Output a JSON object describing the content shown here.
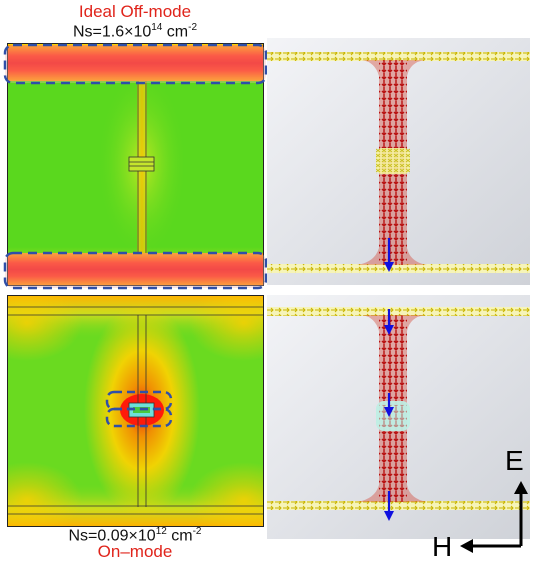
{
  "top": {
    "mode_label": "Ideal Off-mode",
    "ns_prefix": "Ns=1.6×10",
    "ns_exp": "14",
    "ns_unit": " cm",
    "ns_unit_exp": "-2"
  },
  "bottom": {
    "mode_label": "On–mode",
    "ns_prefix": "Ns=0.09×10",
    "ns_exp": "12",
    "ns_unit": " cm",
    "ns_unit_exp": "-2"
  },
  "axes": {
    "e_label": "E",
    "h_label": "H"
  },
  "colors": {
    "mode_label": "#e0241b",
    "field_high": "#e01010",
    "field_mid": "#ffd200",
    "field_low": "#4ed61a",
    "dashed_box": "#2f4fa8",
    "e_arrow": "#1010e0"
  }
}
